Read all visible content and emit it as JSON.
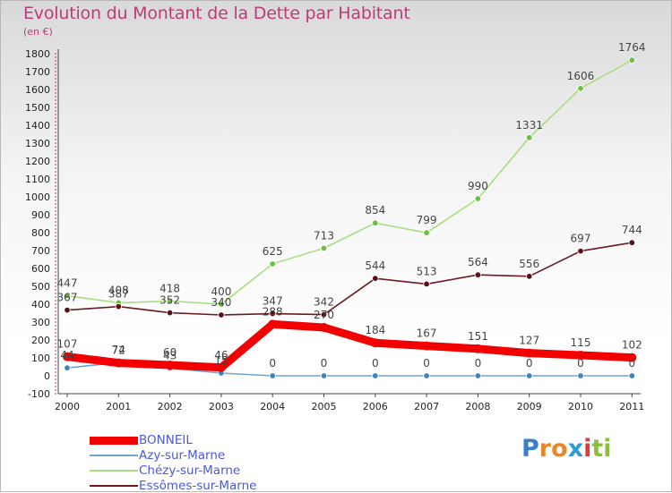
{
  "title": "Evolution du Montant de la Dette par Habitant",
  "subtitle": "(en €)",
  "brand": {
    "letters": [
      "P",
      "r",
      "o",
      "x",
      "i",
      "t",
      "i"
    ],
    "colors": [
      "#3a7fcf",
      "#e8882a",
      "#e8882a",
      "#2a9ad8",
      "#e03a3a",
      "#8ac03a",
      "#8ac03a"
    ]
  },
  "chart_data": {
    "type": "line",
    "title": "Evolution du Montant de la Dette par Habitant",
    "subtitle": "(en €)",
    "x": [
      "2000",
      "2001",
      "2002",
      "2003",
      "2004",
      "2005",
      "2006",
      "2007",
      "2008",
      "2009",
      "2010",
      "2011"
    ],
    "ylim": [
      -100,
      1800
    ],
    "yticks": [
      "-100",
      "0",
      "100",
      "200",
      "300",
      "400",
      "500",
      "600",
      "700",
      "800",
      "900",
      "1000",
      "1100",
      "1200",
      "1300",
      "1400",
      "1500",
      "1600",
      "1700",
      "1800"
    ],
    "grid": false,
    "legend_position": "bottom-left",
    "series": [
      {
        "name": "Chézy-sur-Marne",
        "color": "#a8de82",
        "marker": "#6cc043",
        "values": [
          447,
          408,
          418,
          400,
          625,
          713,
          854,
          799,
          990,
          1331,
          1606,
          1764
        ],
        "labels": [
          "447",
          "408",
          "418",
          "400",
          "625",
          "713",
          "854",
          "799",
          "990",
          "1331",
          "1606",
          "1764"
        ]
      },
      {
        "name": "Essômes-sur-Marne",
        "color": "#6b1a22",
        "marker": "#5a1018",
        "values": [
          367,
          387,
          352,
          340,
          347,
          342,
          544,
          513,
          564,
          556,
          697,
          744
        ],
        "labels": [
          "367",
          "387",
          "352",
          "340",
          "347",
          "342",
          "544",
          "513",
          "564",
          "556",
          "697",
          "744"
        ]
      },
      {
        "name": "Azy-sur-Marne",
        "color": "#6fa3d0",
        "marker": "#3f82c4",
        "values": [
          44,
          74,
          43,
          15,
          0,
          0,
          0,
          0,
          0,
          0,
          0,
          0
        ],
        "labels": [
          "44",
          "74",
          "43",
          "15",
          "0",
          "0",
          "0",
          "0",
          "0",
          "0",
          "0",
          "0"
        ]
      },
      {
        "name": "BONNEIL",
        "color": "#f20000",
        "marker": "#f20000",
        "values": [
          107,
          72,
          60,
          46,
          288,
          270,
          184,
          167,
          151,
          127,
          115,
          102
        ],
        "labels": [
          "107",
          "72",
          "60",
          "46",
          "288",
          "270",
          "184",
          "167",
          "151",
          "127",
          "115",
          "102"
        ]
      }
    ],
    "legend": [
      {
        "name": "BONNEIL",
        "color": "#f20000",
        "text_color": "#4a5ad8"
      },
      {
        "name": "Azy-sur-Marne",
        "color": "#6fa3d0",
        "text_color": "#4a5ad8"
      },
      {
        "name": "Chézy-sur-Marne",
        "color": "#a8de82",
        "text_color": "#4a5ad8"
      },
      {
        "name": "Essômes-sur-Marne",
        "color": "#6b1a22",
        "text_color": "#4a5ad8"
      }
    ]
  }
}
